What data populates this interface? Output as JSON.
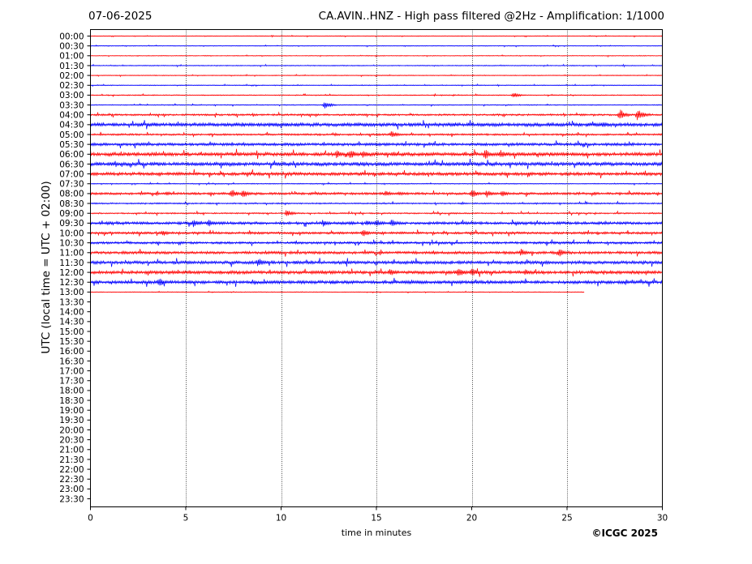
{
  "header": {
    "date": "07-06-2025",
    "station_title": "CA.AVIN..HNZ - High pass filtered @2Hz - Amplification: 1/1000"
  },
  "footer": {
    "copyright": "©ICGC 2025"
  },
  "colors": {
    "trace_a": "#ff0000",
    "trace_b": "#0000ff",
    "axis": "#000000",
    "gridline": "#000000"
  },
  "chart_data": {
    "type": "line",
    "title": "CA.AVIN..HNZ - High pass filtered @2Hz - Amplification: 1/1000",
    "xlabel": "time in minutes",
    "ylabel": "UTC (local time = UTC + 02:00)",
    "xlim": [
      0,
      30
    ],
    "x_ticks": [
      0,
      5,
      10,
      15,
      20,
      25,
      30
    ],
    "vertical_grid": [
      5,
      10,
      15,
      20,
      25
    ],
    "grid": "vertical dotted at every 5 minutes",
    "row_labels": [
      "00:00",
      "00:30",
      "01:00",
      "01:30",
      "02:00",
      "02:30",
      "03:00",
      "03:30",
      "04:00",
      "04:30",
      "05:00",
      "05:30",
      "06:00",
      "06:30",
      "07:00",
      "07:30",
      "08:00",
      "08:30",
      "09:00",
      "09:30",
      "10:00",
      "10:30",
      "11:00",
      "11:30",
      "12:00",
      "12:30",
      "13:00",
      "13:30",
      "14:00",
      "14:30",
      "15:00",
      "15:30",
      "16:00",
      "16:30",
      "17:00",
      "17:30",
      "18:00",
      "18:30",
      "19:00",
      "19:30",
      "20:00",
      "20:30",
      "21:00",
      "21:30",
      "22:00",
      "22:30",
      "23:00",
      "23:30"
    ],
    "traces": [
      {
        "row": "00:00",
        "color": "red",
        "end_minute": 30,
        "noise": 0.3,
        "events": []
      },
      {
        "row": "00:30",
        "color": "blue",
        "end_minute": 30,
        "noise": 0.3,
        "events": []
      },
      {
        "row": "01:00",
        "color": "red",
        "end_minute": 30,
        "noise": 0.35,
        "events": []
      },
      {
        "row": "01:30",
        "color": "blue",
        "end_minute": 30,
        "noise": 0.4,
        "events": []
      },
      {
        "row": "02:00",
        "color": "red",
        "end_minute": 30,
        "noise": 0.35,
        "events": []
      },
      {
        "row": "02:30",
        "color": "blue",
        "end_minute": 30,
        "noise": 0.35,
        "events": []
      },
      {
        "row": "03:00",
        "color": "red",
        "end_minute": 30,
        "noise": 0.4,
        "events": [
          {
            "t": 22.2,
            "amp": 4
          }
        ]
      },
      {
        "row": "03:30",
        "color": "blue",
        "end_minute": 30,
        "noise": 0.4,
        "events": [
          {
            "t": 12.3,
            "amp": 5
          }
        ]
      },
      {
        "row": "04:00",
        "color": "red",
        "end_minute": 30,
        "noise": 0.8,
        "events": [
          {
            "t": 27.8,
            "amp": 7
          },
          {
            "t": 28.7,
            "amp": 8
          }
        ]
      },
      {
        "row": "04:30",
        "color": "blue",
        "end_minute": 30,
        "noise": 1.6,
        "events": [
          {
            "t": 26.9,
            "amp": 4
          }
        ]
      },
      {
        "row": "05:00",
        "color": "red",
        "end_minute": 30,
        "noise": 0.8,
        "events": [
          {
            "t": 15.8,
            "amp": 5
          }
        ]
      },
      {
        "row": "05:30",
        "color": "blue",
        "end_minute": 30,
        "noise": 1.2,
        "events": []
      },
      {
        "row": "06:00",
        "color": "red",
        "end_minute": 30,
        "noise": 1.6,
        "events": [
          {
            "t": 12.9,
            "amp": 6
          },
          {
            "t": 13.6,
            "amp": 7
          },
          {
            "t": 14.3,
            "amp": 5
          },
          {
            "t": 20.7,
            "amp": 7
          },
          {
            "t": 21.5,
            "amp": 6
          }
        ]
      },
      {
        "row": "06:30",
        "color": "blue",
        "end_minute": 30,
        "noise": 1.6,
        "events": []
      },
      {
        "row": "07:00",
        "color": "red",
        "end_minute": 30,
        "noise": 1.4,
        "events": []
      },
      {
        "row": "07:30",
        "color": "blue",
        "end_minute": 30,
        "noise": 0.4,
        "events": []
      },
      {
        "row": "08:00",
        "color": "red",
        "end_minute": 30,
        "noise": 1.0,
        "events": [
          {
            "t": 4.0,
            "amp": 3
          },
          {
            "t": 7.4,
            "amp": 6
          },
          {
            "t": 8.0,
            "amp": 6
          },
          {
            "t": 15.5,
            "amp": 4
          },
          {
            "t": 16.2,
            "amp": 3
          },
          {
            "t": 20.0,
            "amp": 6
          },
          {
            "t": 20.8,
            "amp": 5
          },
          {
            "t": 21.6,
            "amp": 4
          }
        ]
      },
      {
        "row": "08:30",
        "color": "blue",
        "end_minute": 30,
        "noise": 0.6,
        "events": []
      },
      {
        "row": "09:00",
        "color": "red",
        "end_minute": 30,
        "noise": 0.6,
        "events": [
          {
            "t": 10.3,
            "amp": 5
          }
        ]
      },
      {
        "row": "09:30",
        "color": "blue",
        "end_minute": 30,
        "noise": 1.2,
        "events": [
          {
            "t": 5.4,
            "amp": 5
          },
          {
            "t": 6.2,
            "amp": 5
          },
          {
            "t": 12.2,
            "amp": 5
          },
          {
            "t": 13.6,
            "amp": 3
          },
          {
            "t": 14.5,
            "amp": 4
          },
          {
            "t": 15.0,
            "amp": 5
          },
          {
            "t": 15.8,
            "amp": 5
          }
        ]
      },
      {
        "row": "10:00",
        "color": "red",
        "end_minute": 30,
        "noise": 1.0,
        "events": [
          {
            "t": 3.8,
            "amp": 4
          },
          {
            "t": 14.3,
            "amp": 5
          }
        ]
      },
      {
        "row": "10:30",
        "color": "blue",
        "end_minute": 30,
        "noise": 1.0,
        "events": []
      },
      {
        "row": "11:00",
        "color": "red",
        "end_minute": 30,
        "noise": 1.2,
        "events": [
          {
            "t": 22.6,
            "amp": 5
          },
          {
            "t": 24.6,
            "amp": 5
          }
        ]
      },
      {
        "row": "11:30",
        "color": "blue",
        "end_minute": 30,
        "noise": 1.4,
        "events": [
          {
            "t": 8.8,
            "amp": 6
          },
          {
            "t": 24.0,
            "amp": 2
          }
        ]
      },
      {
        "row": "12:00",
        "color": "red",
        "end_minute": 30,
        "noise": 1.4,
        "events": [
          {
            "t": 3.0,
            "amp": 2
          },
          {
            "t": 15.7,
            "amp": 5
          },
          {
            "t": 19.3,
            "amp": 7
          },
          {
            "t": 20.0,
            "amp": 6
          },
          {
            "t": 22.8,
            "amp": 4
          }
        ]
      },
      {
        "row": "12:30",
        "color": "blue",
        "end_minute": 30,
        "noise": 1.4,
        "events": [
          {
            "t": 3.6,
            "amp": 6
          },
          {
            "t": 12.7,
            "amp": 3
          }
        ]
      },
      {
        "row": "13:00",
        "color": "red",
        "end_minute": 25.9,
        "noise": 0.3,
        "events": []
      }
    ]
  }
}
